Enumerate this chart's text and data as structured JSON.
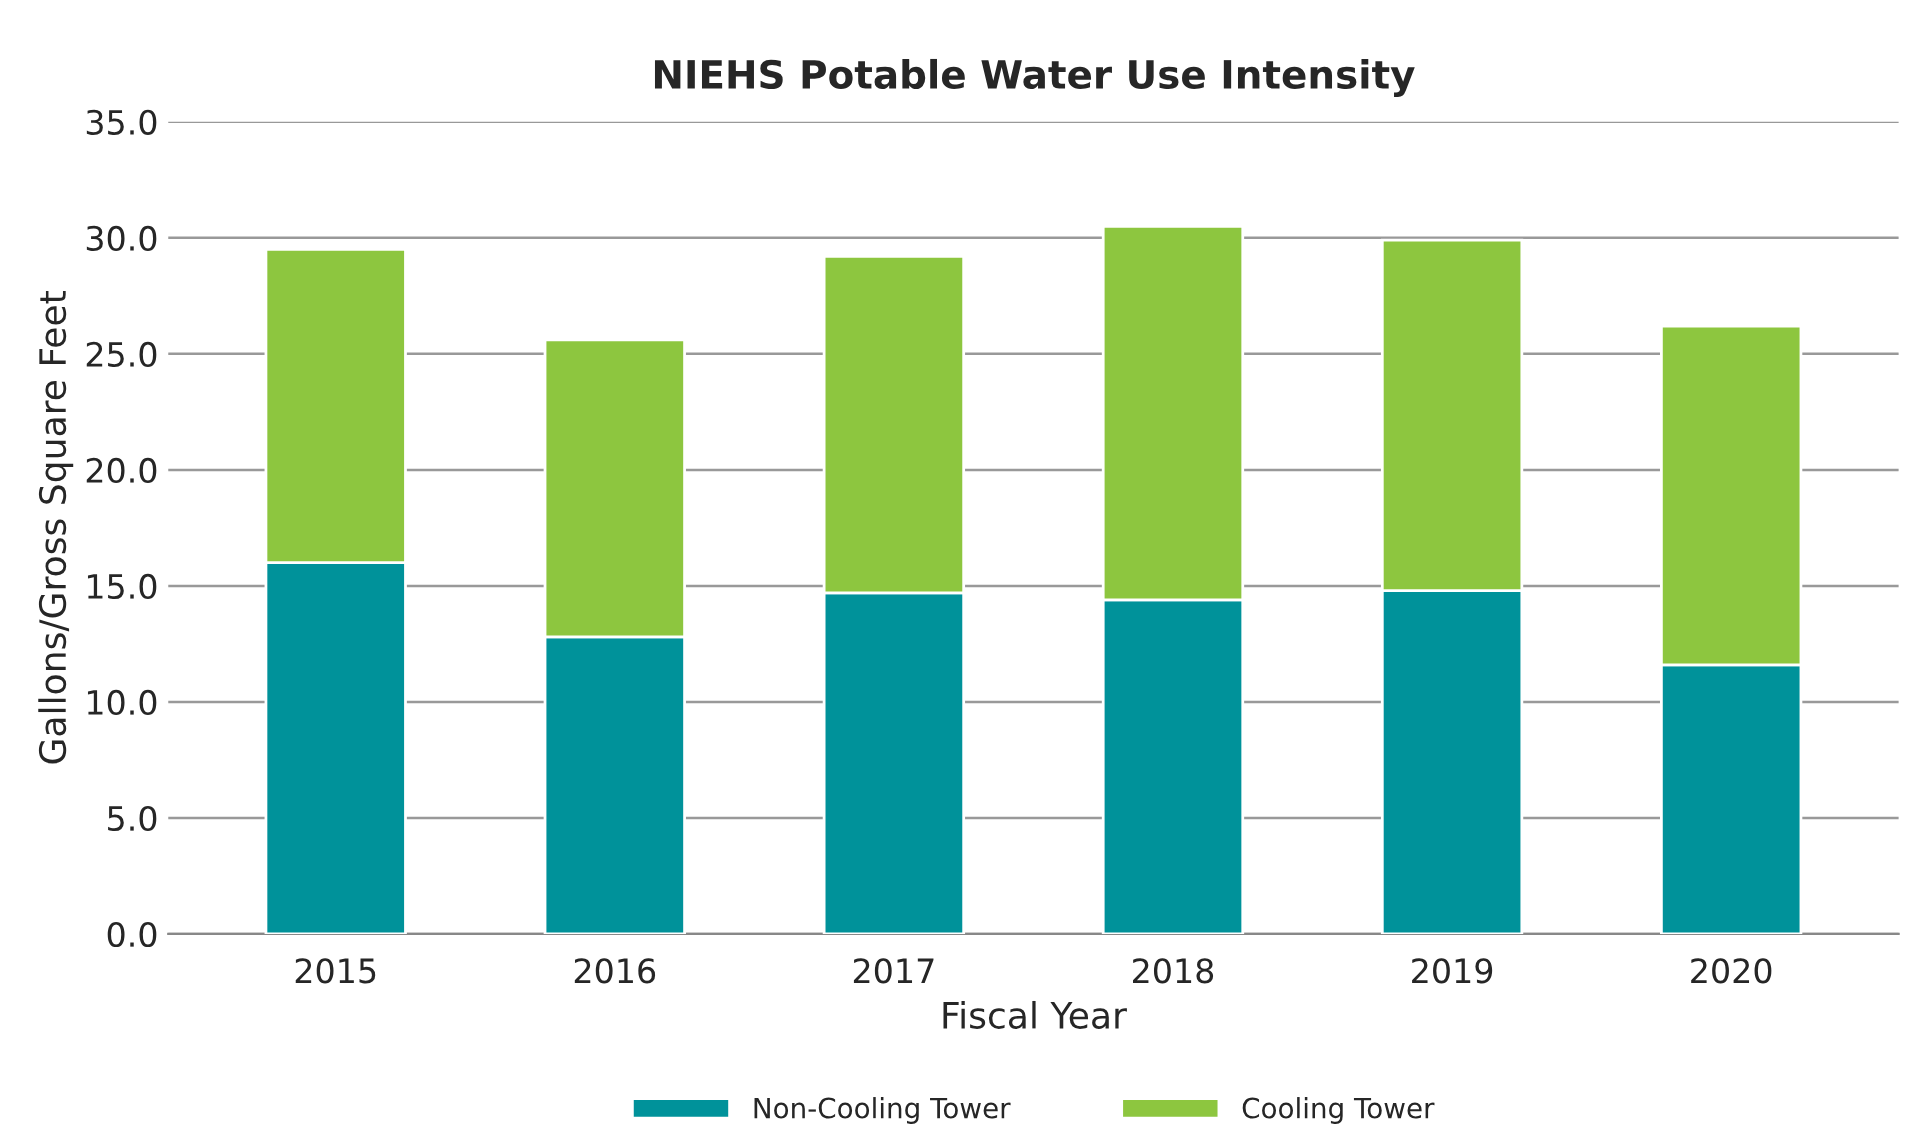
{
  "chart_data": {
    "type": "bar",
    "title": "NIEHS Potable Water Use Intensity",
    "xlabel": "Fiscal Year",
    "ylabel": "Gallons/Gross Square Feet",
    "categories": [
      "2015",
      "2016",
      "2017",
      "2018",
      "2019",
      "2020"
    ],
    "series": [
      {
        "name": "Non-Cooling Tower",
        "color": "#00929a",
        "values": [
          16.0,
          12.8,
          14.7,
          14.4,
          14.8,
          11.6
        ]
      },
      {
        "name": "Cooling Tower",
        "color": "#8dc63f",
        "values": [
          13.5,
          12.8,
          14.5,
          16.1,
          15.1,
          14.6
        ]
      }
    ],
    "stacked": true,
    "ylim": [
      0,
      35
    ],
    "yticks": [
      {
        "value": 0,
        "label": "0.0"
      },
      {
        "value": 5,
        "label": "5.0"
      },
      {
        "value": 10,
        "label": "10.0"
      },
      {
        "value": 15,
        "label": "15.0"
      },
      {
        "value": 20,
        "label": "20.0"
      },
      {
        "value": 25,
        "label": "25.0"
      },
      {
        "value": 30,
        "label": "30.0"
      },
      {
        "value": 35,
        "label": "35.0"
      }
    ],
    "grid": "y",
    "legend": "bottom"
  }
}
